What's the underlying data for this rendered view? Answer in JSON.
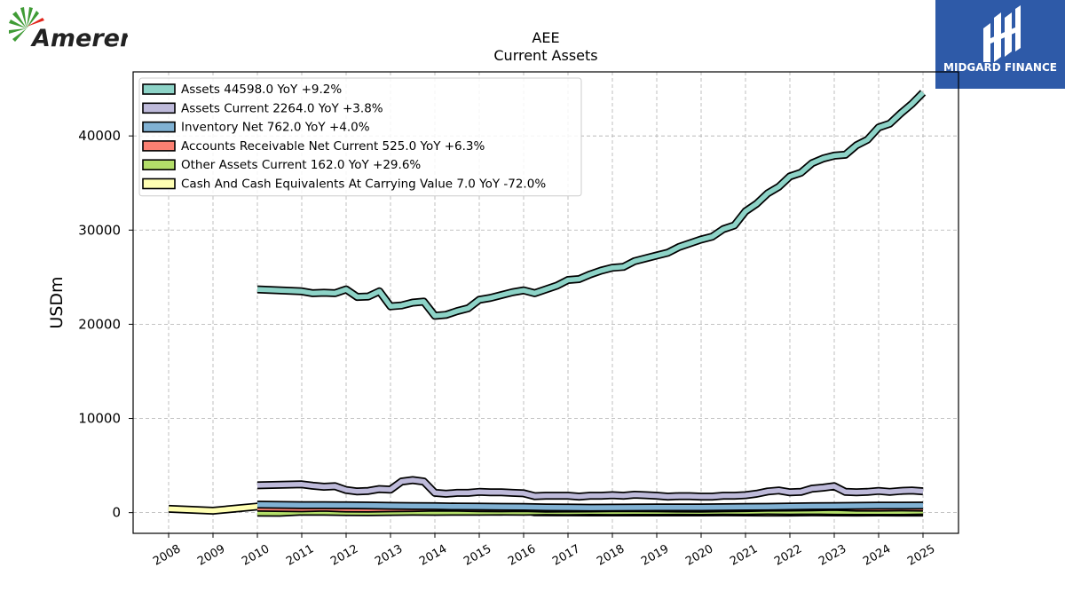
{
  "branding": {
    "company_logo_text": "Ameren",
    "company_logo_colors": [
      "#3f9b35",
      "#e1251b",
      "#222222"
    ],
    "publisher_logo_text": "MIDGARD FINANCE",
    "publisher_bg": "#2e5aa8"
  },
  "chart_data": {
    "type": "line",
    "title": "AEE",
    "subtitle": "Current  Assets",
    "xlabel": "",
    "ylabel": "USDm",
    "xlim": [
      2007.2,
      2025.8
    ],
    "ylim": [
      -2200,
      46800
    ],
    "x_ticks": [
      2008,
      2009,
      2010,
      2011,
      2012,
      2013,
      2014,
      2015,
      2016,
      2017,
      2018,
      2019,
      2020,
      2021,
      2022,
      2023,
      2024,
      2025
    ],
    "y_ticks": [
      0,
      10000,
      20000,
      30000,
      40000
    ],
    "grid": true,
    "legend_position": "upper-left",
    "series": [
      {
        "name": "Assets  44598.0 YoY +9.2%",
        "color": "#8dd3c7",
        "points": [
          [
            2010.0,
            23700
          ],
          [
            2011.0,
            23500
          ],
          [
            2011.25,
            23300
          ],
          [
            2011.5,
            23350
          ],
          [
            2011.75,
            23300
          ],
          [
            2012.0,
            23700
          ],
          [
            2012.25,
            22900
          ],
          [
            2012.5,
            22950
          ],
          [
            2012.75,
            23500
          ],
          [
            2013.0,
            21900
          ],
          [
            2013.25,
            22000
          ],
          [
            2013.5,
            22300
          ],
          [
            2013.75,
            22400
          ],
          [
            2014.0,
            20900
          ],
          [
            2014.25,
            21000
          ],
          [
            2014.5,
            21400
          ],
          [
            2014.75,
            21700
          ],
          [
            2015.0,
            22600
          ],
          [
            2015.25,
            22800
          ],
          [
            2015.5,
            23100
          ],
          [
            2015.75,
            23400
          ],
          [
            2016.0,
            23600
          ],
          [
            2016.25,
            23300
          ],
          [
            2016.5,
            23700
          ],
          [
            2016.75,
            24100
          ],
          [
            2017.0,
            24700
          ],
          [
            2017.25,
            24800
          ],
          [
            2017.5,
            25300
          ],
          [
            2017.75,
            25700
          ],
          [
            2018.0,
            26000
          ],
          [
            2018.25,
            26100
          ],
          [
            2018.5,
            26700
          ],
          [
            2018.75,
            27000
          ],
          [
            2019.0,
            27300
          ],
          [
            2019.25,
            27600
          ],
          [
            2019.5,
            28200
          ],
          [
            2019.75,
            28600
          ],
          [
            2020.0,
            29000
          ],
          [
            2020.25,
            29300
          ],
          [
            2020.5,
            30100
          ],
          [
            2020.75,
            30500
          ],
          [
            2021.0,
            32000
          ],
          [
            2021.25,
            32800
          ],
          [
            2021.5,
            33900
          ],
          [
            2021.75,
            34600
          ],
          [
            2022.0,
            35700
          ],
          [
            2022.25,
            36100
          ],
          [
            2022.5,
            37100
          ],
          [
            2022.75,
            37600
          ],
          [
            2023.0,
            37900
          ],
          [
            2023.25,
            38000
          ],
          [
            2023.5,
            39000
          ],
          [
            2023.75,
            39600
          ],
          [
            2024.0,
            40900
          ],
          [
            2024.25,
            41300
          ],
          [
            2024.5,
            42400
          ],
          [
            2024.75,
            43400
          ],
          [
            2025.0,
            44598
          ]
        ]
      },
      {
        "name": "Assets Current  2264.0 YoY +3.8%",
        "color": "#bebada",
        "points": [
          [
            2010.0,
            2900
          ],
          [
            2011.0,
            3000
          ],
          [
            2011.25,
            2850
          ],
          [
            2011.5,
            2750
          ],
          [
            2011.75,
            2800
          ],
          [
            2012.0,
            2400
          ],
          [
            2012.25,
            2250
          ],
          [
            2012.5,
            2300
          ],
          [
            2012.75,
            2500
          ],
          [
            2013.0,
            2450
          ],
          [
            2013.25,
            3300
          ],
          [
            2013.5,
            3450
          ],
          [
            2013.75,
            3300
          ],
          [
            2014.0,
            2100
          ],
          [
            2014.25,
            2000
          ],
          [
            2014.5,
            2100
          ],
          [
            2014.75,
            2100
          ],
          [
            2015.0,
            2200
          ],
          [
            2015.25,
            2150
          ],
          [
            2015.5,
            2150
          ],
          [
            2015.75,
            2100
          ],
          [
            2016.0,
            2050
          ],
          [
            2016.25,
            1750
          ],
          [
            2016.5,
            1800
          ],
          [
            2016.75,
            1800
          ],
          [
            2017.0,
            1800
          ],
          [
            2017.25,
            1700
          ],
          [
            2017.5,
            1800
          ],
          [
            2017.75,
            1800
          ],
          [
            2018.0,
            1850
          ],
          [
            2018.25,
            1800
          ],
          [
            2018.5,
            1900
          ],
          [
            2018.75,
            1850
          ],
          [
            2019.0,
            1800
          ],
          [
            2019.25,
            1700
          ],
          [
            2019.5,
            1750
          ],
          [
            2019.75,
            1750
          ],
          [
            2020.0,
            1700
          ],
          [
            2020.25,
            1700
          ],
          [
            2020.5,
            1800
          ],
          [
            2020.75,
            1800
          ],
          [
            2021.0,
            1850
          ],
          [
            2021.25,
            2000
          ],
          [
            2021.5,
            2250
          ],
          [
            2021.75,
            2350
          ],
          [
            2022.0,
            2150
          ],
          [
            2022.25,
            2200
          ],
          [
            2022.5,
            2550
          ],
          [
            2022.75,
            2650
          ],
          [
            2023.0,
            2800
          ],
          [
            2023.25,
            2200
          ],
          [
            2023.5,
            2150
          ],
          [
            2023.75,
            2200
          ],
          [
            2024.0,
            2300
          ],
          [
            2024.25,
            2200
          ],
          [
            2024.5,
            2300
          ],
          [
            2024.75,
            2350
          ],
          [
            2025.0,
            2264
          ]
        ]
      },
      {
        "name": "Inventory Net  762.0 YoY +4.0%",
        "color": "#80b1d3",
        "points": [
          [
            2010.0,
            850
          ],
          [
            2011.0,
            800
          ],
          [
            2011.5,
            800
          ],
          [
            2012.0,
            780
          ],
          [
            2012.5,
            760
          ],
          [
            2013.0,
            720
          ],
          [
            2013.5,
            700
          ],
          [
            2014.0,
            680
          ],
          [
            2014.5,
            650
          ],
          [
            2015.0,
            640
          ],
          [
            2015.5,
            620
          ],
          [
            2016.0,
            600
          ],
          [
            2016.5,
            560
          ],
          [
            2017.0,
            540
          ],
          [
            2017.5,
            520
          ],
          [
            2018.0,
            530
          ],
          [
            2018.5,
            540
          ],
          [
            2019.0,
            560
          ],
          [
            2019.5,
            560
          ],
          [
            2020.0,
            560
          ],
          [
            2020.5,
            580
          ],
          [
            2021.0,
            600
          ],
          [
            2021.5,
            620
          ],
          [
            2022.0,
            650
          ],
          [
            2022.5,
            680
          ],
          [
            2023.0,
            700
          ],
          [
            2023.5,
            720
          ],
          [
            2024.0,
            740
          ],
          [
            2024.5,
            750
          ],
          [
            2025.0,
            762
          ]
        ]
      },
      {
        "name": "Accounts Receivable Net Current  525.0 YoY +6.3%",
        "color": "#fb8072",
        "points": [
          [
            2010.0,
            500
          ],
          [
            2011.0,
            450
          ],
          [
            2011.5,
            500
          ],
          [
            2012.0,
            430
          ],
          [
            2012.5,
            420
          ],
          [
            2013.0,
            450
          ],
          [
            2013.5,
            480
          ],
          [
            2014.0,
            520
          ],
          [
            2014.5,
            500
          ],
          [
            2015.0,
            460
          ],
          [
            2015.5,
            450
          ],
          [
            2016.0,
            480
          ],
          [
            2016.5,
            420
          ],
          [
            2017.0,
            430
          ],
          [
            2017.5,
            440
          ],
          [
            2018.0,
            460
          ],
          [
            2018.5,
            470
          ],
          [
            2019.0,
            450
          ],
          [
            2019.5,
            430
          ],
          [
            2020.0,
            420
          ],
          [
            2020.5,
            450
          ],
          [
            2021.0,
            480
          ],
          [
            2021.5,
            520
          ],
          [
            2022.0,
            530
          ],
          [
            2022.5,
            560
          ],
          [
            2023.0,
            600
          ],
          [
            2023.5,
            520
          ],
          [
            2024.0,
            520
          ],
          [
            2024.5,
            540
          ],
          [
            2025.0,
            525
          ]
        ]
      },
      {
        "name": "Other Assets Current  162.0 YoY +29.6%",
        "color": "#b3de69",
        "points": [
          [
            2010.0,
            0
          ],
          [
            2010.5,
            -20
          ],
          [
            2011.0,
            100
          ],
          [
            2011.5,
            80
          ],
          [
            2012.0,
            50
          ],
          [
            2012.5,
            40
          ],
          [
            2013.0,
            60
          ],
          [
            2013.5,
            80
          ],
          [
            2014.0,
            70
          ],
          [
            2014.5,
            90
          ],
          [
            2015.0,
            80
          ],
          [
            2015.5,
            100
          ],
          [
            2016.0,
            90
          ],
          [
            2016.5,
            120
          ],
          [
            2017.0,
            110
          ],
          [
            2017.5,
            130
          ],
          [
            2018.0,
            120
          ],
          [
            2018.5,
            140
          ],
          [
            2019.0,
            130
          ],
          [
            2019.5,
            150
          ],
          [
            2020.0,
            140
          ],
          [
            2020.5,
            160
          ],
          [
            2021.0,
            150
          ],
          [
            2021.5,
            170
          ],
          [
            2022.0,
            160
          ],
          [
            2022.5,
            180
          ],
          [
            2023.0,
            150
          ],
          [
            2023.5,
            140
          ],
          [
            2024.0,
            130
          ],
          [
            2024.5,
            140
          ],
          [
            2025.0,
            162
          ]
        ]
      },
      {
        "name": "Cash And Cash Equivalents At Carrying Value  7.0 YoY -72.0%",
        "color": "#ffffb3",
        "points": [
          [
            2008.0,
            400
          ],
          [
            2009.0,
            200
          ],
          [
            2010.0,
            650
          ],
          [
            2010.25,
            550
          ],
          [
            2010.5,
            700
          ],
          [
            2011.0,
            650
          ],
          [
            2011.25,
            600
          ],
          [
            2011.5,
            550
          ],
          [
            2012.0,
            500
          ],
          [
            2012.25,
            450
          ],
          [
            2012.5,
            550
          ],
          [
            2013.0,
            300
          ],
          [
            2013.5,
            200
          ],
          [
            2014.0,
            150
          ],
          [
            2014.5,
            180
          ],
          [
            2015.0,
            120
          ],
          [
            2015.5,
            100
          ],
          [
            2016.0,
            250
          ],
          [
            2016.25,
            30
          ],
          [
            2016.75,
            20
          ],
          [
            2017.0,
            20
          ],
          [
            2017.5,
            15
          ],
          [
            2018.0,
            10
          ],
          [
            2018.5,
            10
          ],
          [
            2019.0,
            10
          ],
          [
            2019.5,
            12
          ],
          [
            2020.0,
            10
          ],
          [
            2020.5,
            20
          ],
          [
            2021.0,
            10
          ],
          [
            2021.5,
            8
          ],
          [
            2022.0,
            5
          ],
          [
            2022.5,
            20
          ],
          [
            2023.0,
            10
          ],
          [
            2023.5,
            5
          ],
          [
            2024.0,
            10
          ],
          [
            2024.5,
            6
          ],
          [
            2025.0,
            7
          ]
        ]
      }
    ]
  }
}
